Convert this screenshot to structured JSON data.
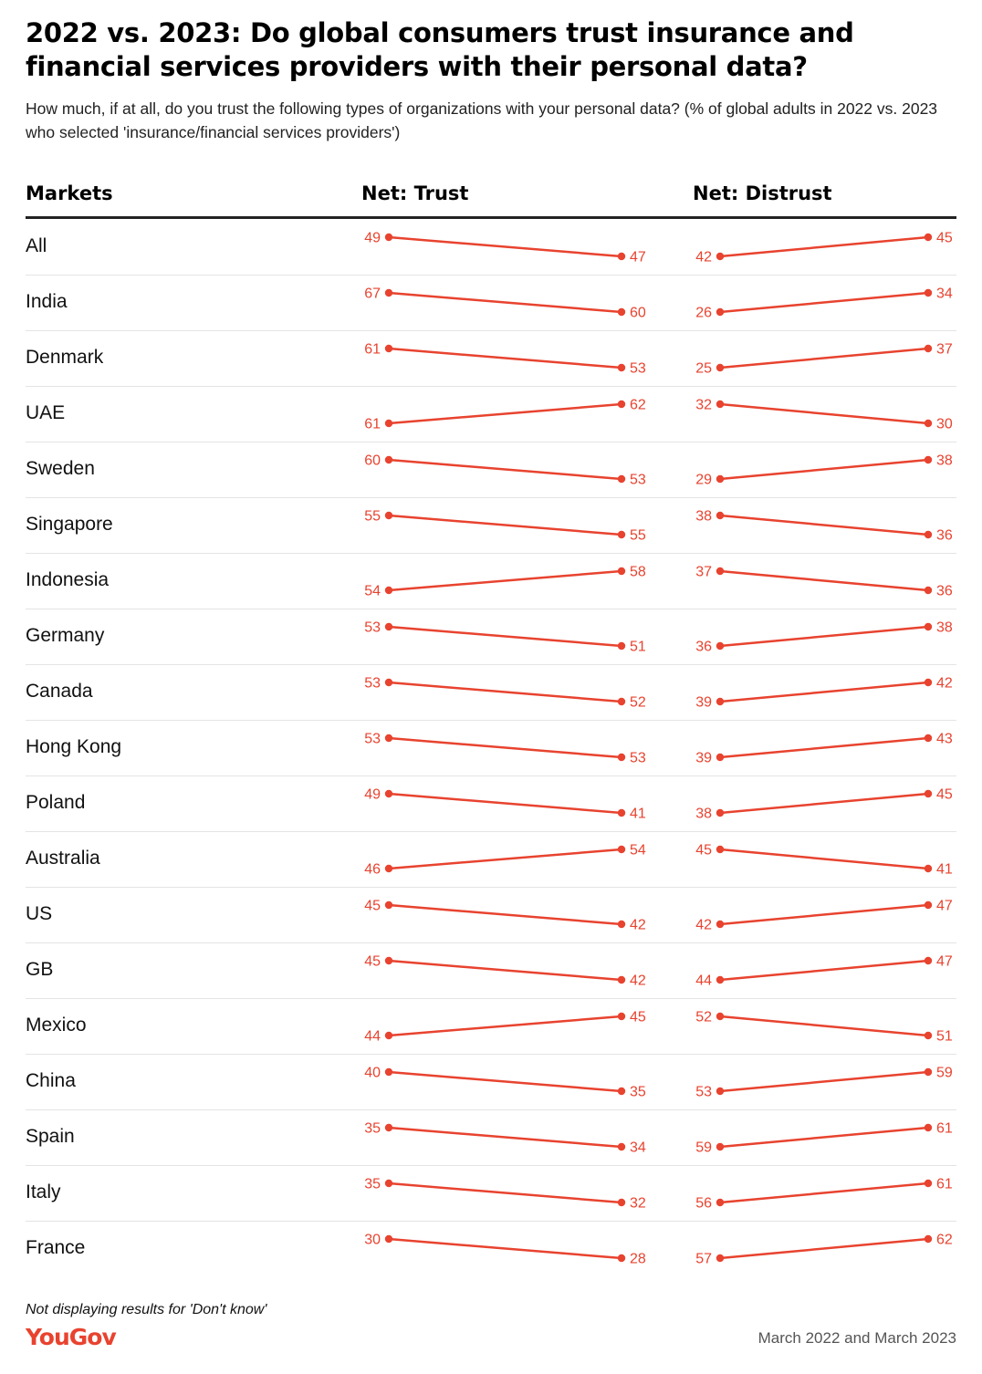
{
  "header": {
    "title": "2022 vs. 2023: Do global consumers trust insurance and financial services providers with their personal data?",
    "subtitle": "How much, if at all, do you trust the following types of organizations with your personal data? (% of global adults in 2022 vs. 2023 who selected 'insurance/financial services providers')"
  },
  "columns": {
    "markets": "Markets",
    "trust": "Net: Trust",
    "distrust": "Net: Distrust"
  },
  "footer": {
    "note": "Not displaying results for 'Don't know'",
    "brand": "YouGov",
    "date": "March 2022 and March 2023"
  },
  "colors": {
    "accent": "#e8432f",
    "text": "#111111",
    "rule": "#222222",
    "gridline": "#e4e4e4"
  },
  "chart_data": {
    "type": "slope",
    "x": [
      "2022",
      "2023"
    ],
    "categories": [
      "All",
      "India",
      "Denmark",
      "UAE",
      "Sweden",
      "Singapore",
      "Indonesia",
      "Germany",
      "Canada",
      "Hong Kong",
      "Poland",
      "Australia",
      "US",
      "GB",
      "Mexico",
      "China",
      "Spain",
      "Italy",
      "France"
    ],
    "series": [
      {
        "name": "Net: Trust",
        "values_2022": [
          49,
          67,
          61,
          61,
          60,
          55,
          54,
          53,
          53,
          53,
          49,
          46,
          45,
          45,
          44,
          40,
          35,
          35,
          30
        ],
        "values_2023": [
          47,
          60,
          53,
          62,
          53,
          55,
          58,
          51,
          52,
          53,
          41,
          54,
          42,
          42,
          45,
          35,
          34,
          32,
          28
        ]
      },
      {
        "name": "Net: Distrust",
        "values_2022": [
          42,
          26,
          25,
          32,
          29,
          38,
          37,
          36,
          39,
          39,
          38,
          45,
          42,
          44,
          52,
          53,
          59,
          56,
          57
        ],
        "values_2023": [
          45,
          34,
          37,
          30,
          38,
          36,
          36,
          38,
          42,
          43,
          45,
          41,
          47,
          47,
          51,
          59,
          61,
          61,
          62
        ]
      }
    ]
  }
}
